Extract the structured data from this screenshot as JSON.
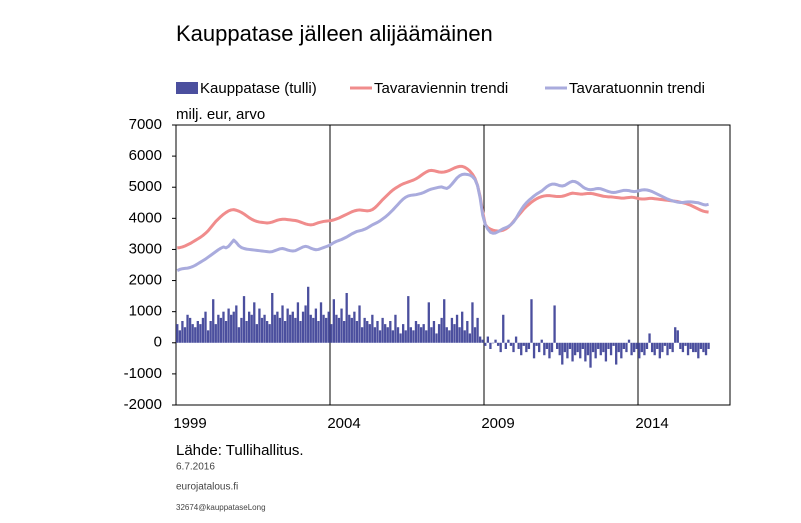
{
  "chart_data": {
    "type": "combo",
    "title": "Kauppatase jälleen alijäämäinen",
    "ylabel": "milj. eur, arvo",
    "source": "Lähde:  Tullihallitus.",
    "notes": [
      "6.7.2016",
      "eurojatalous.fi",
      "32674@kauppataseLong"
    ],
    "ylim": [
      -2000,
      7000
    ],
    "yticks": [
      -2000,
      -1000,
      0,
      1000,
      2000,
      3000,
      4000,
      5000,
      6000,
      7000
    ],
    "grid": "x",
    "categories": [
      "1999",
      null,
      null,
      null,
      null,
      null,
      null,
      null,
      null,
      null,
      null,
      null,
      null,
      null,
      null,
      null,
      null,
      null,
      null,
      null,
      null,
      null,
      null,
      null,
      null,
      null,
      null,
      null,
      null,
      null,
      null,
      null,
      null,
      null,
      null,
      null,
      null,
      null,
      null,
      null,
      null,
      null,
      null,
      null,
      null,
      null,
      null,
      null,
      null,
      null,
      null,
      null,
      null,
      null,
      null,
      null,
      null,
      null,
      null,
      null,
      "2004",
      null,
      null,
      null,
      null,
      null,
      null,
      null,
      null,
      null,
      null,
      null,
      null,
      null,
      null,
      null,
      null,
      null,
      null,
      null,
      null,
      null,
      null,
      null,
      null,
      null,
      null,
      null,
      null,
      null,
      null,
      null,
      null,
      null,
      null,
      null,
      null,
      null,
      null,
      null,
      null,
      null,
      null,
      null,
      null,
      null,
      null,
      null,
      null,
      null,
      null,
      null,
      null,
      null,
      null,
      null,
      null,
      null,
      null,
      null,
      "2009",
      null,
      null,
      null,
      null,
      null,
      null,
      null,
      null,
      null,
      null,
      null,
      null,
      null,
      null,
      null,
      null,
      null,
      null,
      null,
      null,
      null,
      null,
      null,
      null,
      null,
      null,
      null,
      null,
      null,
      null,
      null,
      null,
      null,
      null,
      null,
      null,
      null,
      null,
      null,
      null,
      null,
      null,
      null,
      null,
      null,
      null,
      null,
      null,
      null,
      null,
      null,
      null,
      null,
      null,
      null,
      null,
      null,
      null,
      null,
      "2014",
      null,
      null,
      null,
      null,
      null,
      null,
      null,
      null,
      null,
      null,
      null,
      null,
      null,
      null,
      null,
      null,
      null,
      null,
      null,
      null,
      null,
      null,
      null,
      null,
      null,
      null,
      null
    ],
    "series": [
      {
        "name": "Kauppatase (tulli)",
        "type": "bar",
        "color": "#4b4f9e",
        "values": [
          600,
          400,
          700,
          500,
          900,
          800,
          600,
          500,
          700,
          600,
          800,
          1000,
          400,
          700,
          1400,
          600,
          900,
          800,
          1000,
          700,
          1100,
          900,
          1000,
          1200,
          500,
          800,
          1500,
          700,
          1000,
          900,
          1300,
          600,
          1100,
          800,
          900,
          700,
          600,
          1600,
          900,
          1000,
          800,
          1200,
          700,
          1100,
          900,
          1000,
          800,
          1300,
          700,
          1000,
          1200,
          1800,
          900,
          800,
          1100,
          700,
          1300,
          900,
          800,
          1000,
          600,
          1400,
          900,
          800,
          1100,
          700,
          1600,
          900,
          800,
          1000,
          700,
          1200,
          500,
          800,
          700,
          600,
          900,
          500,
          700,
          400,
          800,
          600,
          500,
          700,
          400,
          900,
          500,
          300,
          600,
          400,
          1500,
          500,
          400,
          700,
          600,
          500,
          600,
          400,
          1300,
          500,
          700,
          300,
          600,
          800,
          1400,
          500,
          400,
          800,
          600,
          900,
          500,
          1000,
          400,
          700,
          300,
          1300,
          500,
          800,
          200,
          100,
          -100,
          200,
          -200,
          0,
          100,
          -100,
          -300,
          900,
          -200,
          100,
          -100,
          -300,
          200,
          -200,
          -400,
          -100,
          -300,
          -200,
          1400,
          -500,
          -100,
          -300,
          100,
          -400,
          -200,
          -500,
          -300,
          1200,
          -200,
          -400,
          -700,
          -300,
          -500,
          -200,
          -600,
          -400,
          -300,
          -500,
          -200,
          -600,
          -400,
          -800,
          -300,
          -500,
          -200,
          -400,
          -300,
          -600,
          -200,
          -400,
          -100,
          -700,
          -300,
          -500,
          -200,
          -300,
          100,
          -400,
          -300,
          -200,
          -500,
          -300,
          -400,
          -200,
          300,
          -300,
          -400,
          -200,
          -500,
          -300,
          -100,
          -400,
          -200,
          -300,
          500,
          400,
          -200,
          -300,
          -100,
          -400,
          -200,
          -300,
          -300,
          -500,
          -200,
          -300,
          -400,
          -200
        ]
      },
      {
        "name": "Tavaraviennin trendi",
        "type": "line",
        "color": "#f08c8c",
        "values": [
          3050,
          3060,
          3080,
          3110,
          3150,
          3190,
          3240,
          3290,
          3340,
          3390,
          3450,
          3520,
          3600,
          3700,
          3800,
          3900,
          3980,
          4060,
          4130,
          4190,
          4240,
          4270,
          4280,
          4260,
          4230,
          4190,
          4140,
          4080,
          4020,
          3970,
          3930,
          3900,
          3880,
          3870,
          3860,
          3850,
          3860,
          3880,
          3910,
          3940,
          3960,
          3970,
          3970,
          3960,
          3950,
          3940,
          3930,
          3910,
          3880,
          3850,
          3820,
          3800,
          3790,
          3800,
          3830,
          3860,
          3880,
          3900,
          3910,
          3920,
          3930,
          3950,
          3980,
          4010,
          4050,
          4090,
          4130,
          4170,
          4210,
          4240,
          4260,
          4270,
          4260,
          4250,
          4240,
          4250,
          4280,
          4340,
          4420,
          4510,
          4600,
          4680,
          4760,
          4840,
          4910,
          4970,
          5020,
          5070,
          5110,
          5140,
          5170,
          5200,
          5230,
          5270,
          5320,
          5380,
          5440,
          5490,
          5530,
          5540,
          5530,
          5510,
          5490,
          5480,
          5490,
          5510,
          5540,
          5580,
          5620,
          5650,
          5670,
          5670,
          5640,
          5590,
          5520,
          5420,
          5280,
          5050,
          4700,
          4200,
          3800,
          3700,
          3650,
          3620,
          3600,
          3590,
          3600,
          3620,
          3660,
          3720,
          3800,
          3900,
          4000,
          4100,
          4200,
          4300,
          4380,
          4450,
          4520,
          4580,
          4630,
          4670,
          4700,
          4720,
          4730,
          4730,
          4720,
          4710,
          4700,
          4700,
          4710,
          4730,
          4760,
          4790,
          4810,
          4800,
          4790,
          4780,
          4780,
          4790,
          4800,
          4800,
          4790,
          4770,
          4750,
          4730,
          4710,
          4700,
          4690,
          4690,
          4680,
          4670,
          4660,
          4650,
          4650,
          4660,
          4670,
          4680,
          4670,
          4650,
          4630,
          4620,
          4620,
          4630,
          4640,
          4640,
          4630,
          4620,
          4610,
          4600,
          4590,
          4580,
          4570,
          4560,
          4550,
          4540,
          4520,
          4500,
          4480,
          4450,
          4420,
          4380,
          4340,
          4300,
          4260,
          4230,
          4210,
          4200
        ]
      },
      {
        "name": "Tavaratuonnin trendi",
        "type": "line",
        "color": "#a9abdd",
        "values": [
          2320,
          2360,
          2380,
          2390,
          2400,
          2420,
          2450,
          2490,
          2540,
          2590,
          2640,
          2690,
          2750,
          2810,
          2870,
          2930,
          2990,
          3040,
          3080,
          3050,
          3100,
          3200,
          3300,
          3220,
          3120,
          3060,
          3030,
          3010,
          3000,
          2990,
          2980,
          2970,
          2960,
          2950,
          2940,
          2930,
          2920,
          2930,
          2960,
          2990,
          3020,
          3030,
          3010,
          2980,
          2960,
          2950,
          2960,
          3000,
          3040,
          3080,
          3100,
          3080,
          3040,
          3010,
          2990,
          3000,
          3030,
          3060,
          3090,
          3120,
          3170,
          3220,
          3260,
          3290,
          3320,
          3360,
          3400,
          3450,
          3500,
          3540,
          3580,
          3600,
          3620,
          3650,
          3690,
          3740,
          3790,
          3830,
          3870,
          3920,
          3980,
          4040,
          4110,
          4190,
          4270,
          4360,
          4450,
          4540,
          4620,
          4680,
          4720,
          4740,
          4750,
          4760,
          4780,
          4800,
          4830,
          4870,
          4910,
          4940,
          4960,
          4980,
          5000,
          5010,
          4980,
          4960,
          5010,
          5100,
          5200,
          5300,
          5370,
          5410,
          5420,
          5410,
          5390,
          5340,
          5250,
          5050,
          4650,
          4100,
          3800,
          3650,
          3550,
          3520,
          3530,
          3570,
          3620,
          3670,
          3700,
          3740,
          3800,
          3880,
          4000,
          4150,
          4280,
          4400,
          4500,
          4580,
          4650,
          4720,
          4780,
          4830,
          4880,
          4950,
          5020,
          5070,
          5100,
          5100,
          5080,
          5050,
          5040,
          5060,
          5110,
          5160,
          5190,
          5180,
          5140,
          5080,
          5010,
          4960,
          4930,
          4920,
          4930,
          4950,
          4960,
          4950,
          4920,
          4890,
          4860,
          4840,
          4830,
          4840,
          4860,
          4880,
          4900,
          4900,
          4890,
          4870,
          4860,
          4870,
          4890,
          4910,
          4920,
          4910,
          4890,
          4860,
          4820,
          4780,
          4740,
          4700,
          4660,
          4620,
          4590,
          4560,
          4540,
          4520,
          4510,
          4510,
          4520,
          4530,
          4530,
          4520,
          4510,
          4500,
          4470,
          4440,
          4430,
          4450
        ]
      }
    ]
  }
}
